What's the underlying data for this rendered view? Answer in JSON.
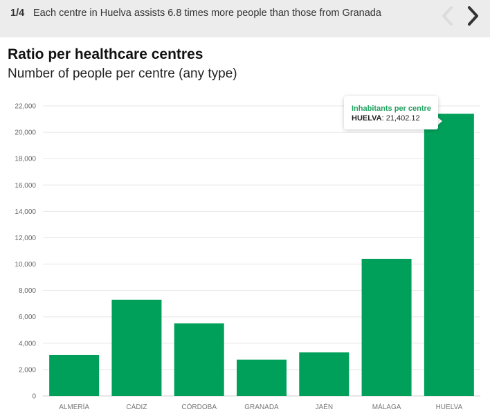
{
  "header": {
    "step": "1/4",
    "headline": "Each centre in Huelva assists 6.8 times more people than those from Granada"
  },
  "colors": {
    "bar": "#00a05a",
    "tooltip_title": "#20a060",
    "topbar": "#ececec",
    "nav_prev": "#dcdcdc",
    "nav_next": "#333333"
  },
  "icons": {
    "prev": "chevron-left-icon",
    "next": "chevron-right-icon"
  },
  "tooltip": {
    "title": "Inhabitants per centre",
    "label": "HUELVA",
    "separator": ": ",
    "value": "21,402.12"
  },
  "chart_data": {
    "type": "bar",
    "title": "Ratio per healthcare centres",
    "subtitle": "Number of people per centre (any type)",
    "categories": [
      "ALMERÍA",
      "CÁDIZ",
      "CÓRDOBA",
      "GRANADA",
      "JAÉN",
      "MÁLAGA",
      "HUELVA"
    ],
    "series": [
      {
        "name": "Inhabitants per centre",
        "values": [
          3100,
          7300,
          5500,
          2750,
          3300,
          10400,
          21402.12
        ]
      }
    ],
    "ylim": [
      0,
      22000
    ],
    "yticks": [
      "0",
      "2,000",
      "4,000",
      "6,000",
      "8,000",
      "10,000",
      "12,000",
      "14,000",
      "16,000",
      "18,000",
      "20,000",
      "22,000"
    ],
    "grid": true,
    "xlabel": "",
    "ylabel": ""
  }
}
